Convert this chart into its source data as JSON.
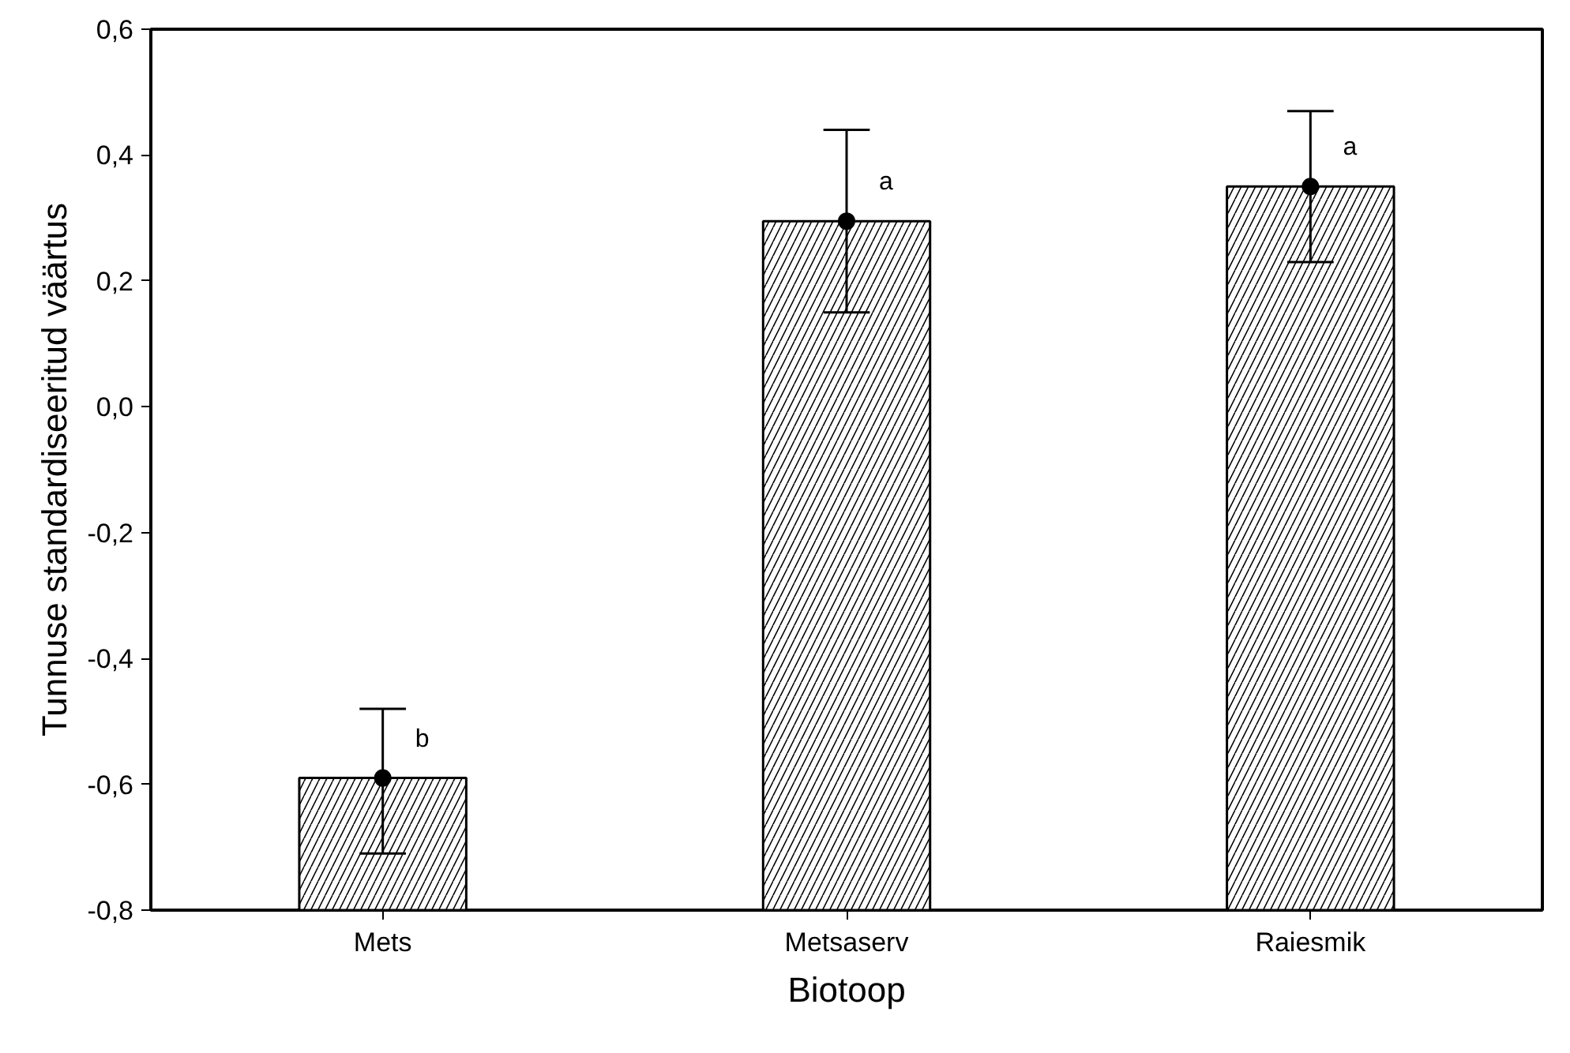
{
  "chart_data": {
    "type": "bar",
    "xlabel": "Biotoop",
    "ylabel": "Tunnuse standardiseeritud väärtus",
    "categories": [
      "Mets",
      "Metsaserv",
      "Raiesmik"
    ],
    "series": [
      {
        "color": "#ffffff",
        "base": [
          -0.8,
          -0.8,
          -0.8
        ],
        "values": [
          0.21,
          1.095,
          1.15
        ],
        "errors": [
          [
            -0.71,
            -0.48
          ],
          [
            0.15,
            0.44
          ],
          [
            0.23,
            0.47
          ]
        ]
      },
      {
        "type": "scatter",
        "color": "#000000",
        "x": [
          "Mets",
          "Metsaserv",
          "Raiesmik"
        ],
        "values": [
          -0.59,
          0.295,
          0.35
        ],
        "marker": "circle"
      }
    ],
    "grid": false,
    "ylim": [
      -0.8,
      0.6
    ],
    "yticks": [
      {
        "value": -0.8,
        "label": "-0,8"
      },
      {
        "value": -0.6,
        "label": "-0,6"
      },
      {
        "value": -0.4,
        "label": "-0,4"
      },
      {
        "value": -0.2,
        "label": "-0,2"
      },
      {
        "value": 0,
        "label": "0,0"
      },
      {
        "value": 0.2,
        "label": "0,2"
      },
      {
        "value": 0.4,
        "label": "0,4"
      },
      {
        "value": 0.6,
        "label": "0,6"
      }
    ],
    "annotations": [
      {
        "text": "b",
        "x": "Mets",
        "y": -0.59
      },
      {
        "text": "a",
        "x": "Metsaserv",
        "y": 0.295
      },
      {
        "text": "a",
        "x": "Raiesmik",
        "y": 0.35
      }
    ]
  }
}
